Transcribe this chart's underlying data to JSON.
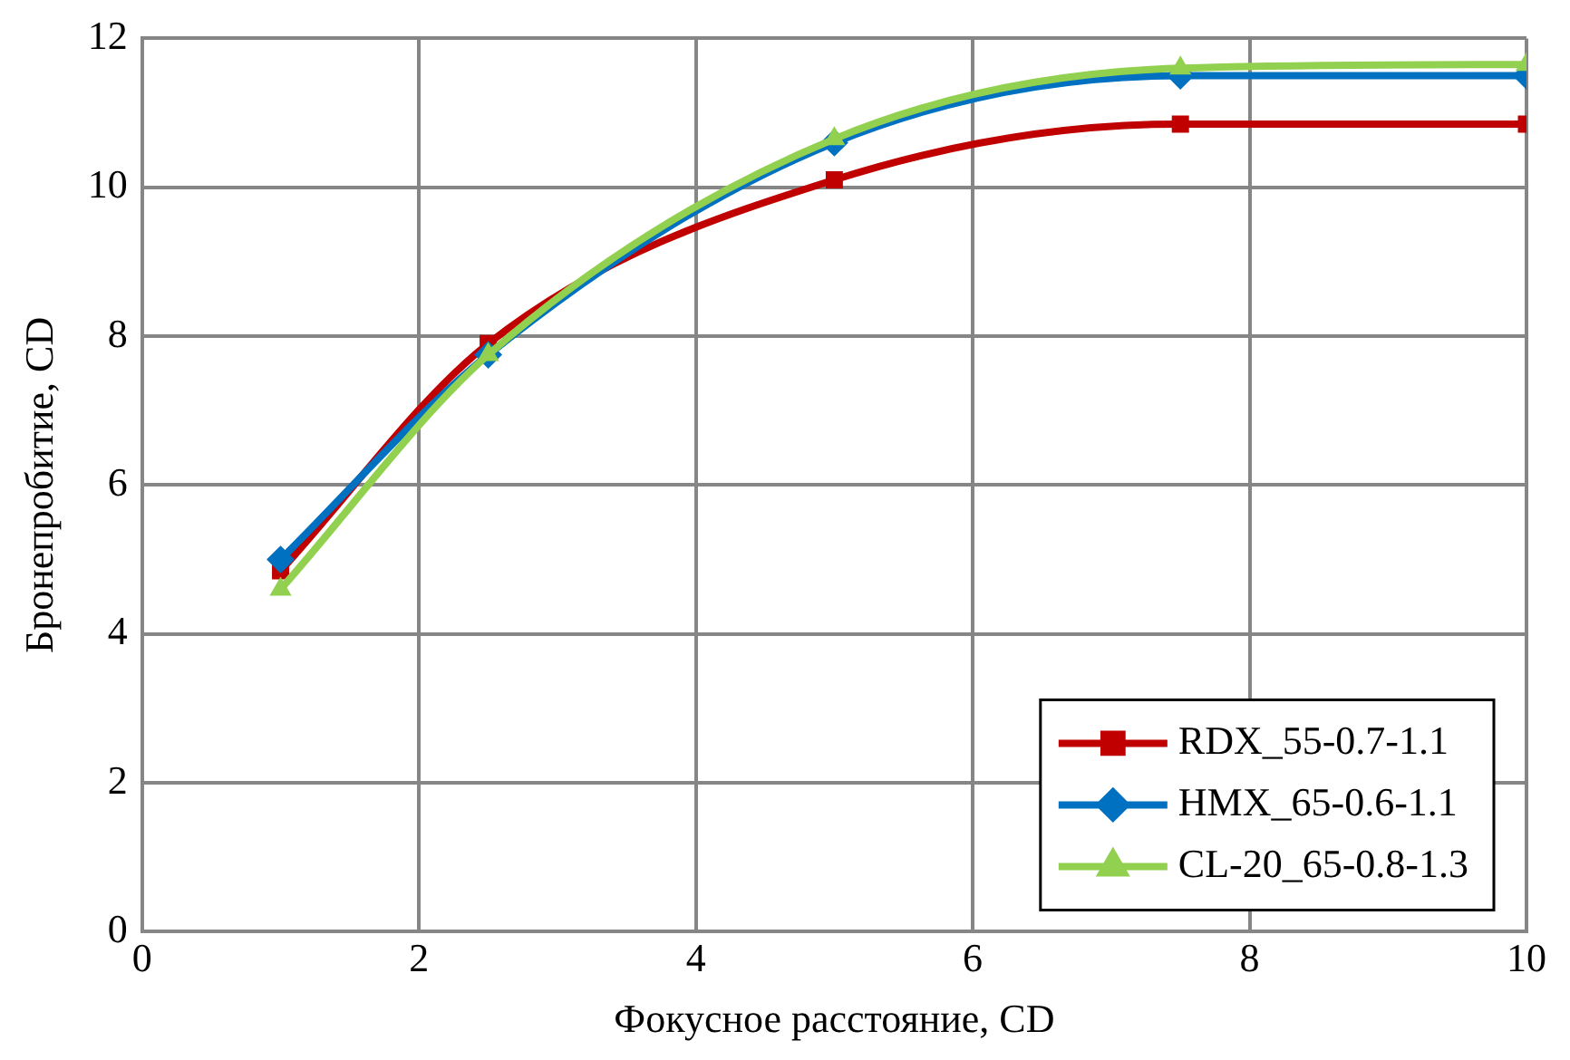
{
  "chart_data": {
    "type": "line",
    "xlabel": "Фокусное расстояние, CD",
    "ylabel": "Бронепробитие, CD",
    "x": [
      1,
      2.5,
      5,
      7.5,
      10
    ],
    "series": [
      {
        "name": "RDX_55-0.7-1.1",
        "color": "#c00000",
        "marker": "square",
        "values": [
          4.85,
          7.9,
          10.1,
          10.85,
          10.85
        ]
      },
      {
        "name": "HMX_65-0.6-1.1",
        "color": "#0070c0",
        "marker": "diamond",
        "values": [
          5.0,
          7.75,
          10.6,
          11.5,
          11.5
        ]
      },
      {
        "name": "CL-20_65-0.8-1.3",
        "color": "#92d050",
        "marker": "triangle",
        "values": [
          4.6,
          7.75,
          10.65,
          11.6,
          11.65
        ]
      }
    ],
    "xlim": [
      0,
      10
    ],
    "xticks": [
      0,
      2,
      4,
      6,
      8,
      10
    ],
    "ylim": [
      0,
      12
    ],
    "yticks": [
      0,
      2,
      4,
      6,
      8,
      10,
      12
    ],
    "grid": true,
    "legend": "bottom right",
    "line_style": "solid"
  }
}
